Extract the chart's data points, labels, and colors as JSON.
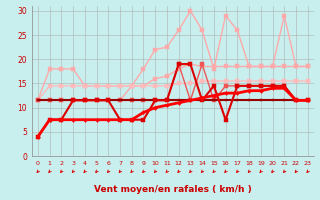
{
  "title": "",
  "xlabel": "Vent moyen/en rafales ( km/h )",
  "background_color": "#c8eeee",
  "grid_color": "#b0b0b0",
  "x_range": [
    -0.5,
    23.5
  ],
  "y_range": [
    0,
    31
  ],
  "yticks": [
    0,
    5,
    10,
    15,
    20,
    25,
    30
  ],
  "xticks": [
    0,
    1,
    2,
    3,
    4,
    5,
    6,
    7,
    8,
    9,
    10,
    11,
    12,
    13,
    14,
    15,
    16,
    17,
    18,
    19,
    20,
    21,
    22,
    23
  ],
  "series": [
    {
      "x": [
        0,
        1,
        2,
        3,
        4,
        5,
        6,
        7,
        8,
        9,
        10,
        11,
        12,
        13,
        14,
        15,
        16,
        17,
        18,
        19,
        20,
        21,
        22,
        23
      ],
      "y": [
        11.5,
        11.5,
        11.5,
        11.5,
        11.5,
        11.5,
        11.5,
        11.5,
        14.5,
        18.0,
        22.0,
        22.5,
        26.0,
        30.0,
        26.0,
        18.0,
        29.0,
        26.0,
        18.5,
        18.5,
        18.5,
        29.0,
        18.5,
        18.5
      ],
      "color": "#ffaaaa",
      "lw": 1.0,
      "marker": "s",
      "ms": 2.5
    },
    {
      "x": [
        0,
        1,
        2,
        3,
        4,
        5,
        6,
        7,
        8,
        9,
        10,
        11,
        12,
        13,
        14,
        15,
        16,
        17,
        18,
        19,
        20,
        21,
        22,
        23
      ],
      "y": [
        11.5,
        18.0,
        18.0,
        18.0,
        14.5,
        14.5,
        14.5,
        14.5,
        14.5,
        14.5,
        16.0,
        16.5,
        18.0,
        19.0,
        18.5,
        18.5,
        18.5,
        18.5,
        18.5,
        18.5,
        18.5,
        18.5,
        18.5,
        18.5
      ],
      "color": "#ffaaaa",
      "lw": 1.0,
      "marker": "s",
      "ms": 2.5
    },
    {
      "x": [
        0,
        1,
        2,
        3,
        4,
        5,
        6,
        7,
        8,
        9,
        10,
        11,
        12,
        13,
        14,
        15,
        16,
        17,
        18,
        19,
        20,
        21,
        22,
        23
      ],
      "y": [
        11.5,
        14.5,
        14.5,
        14.5,
        14.5,
        14.5,
        14.5,
        14.5,
        14.5,
        14.5,
        14.5,
        14.5,
        15.0,
        15.0,
        15.5,
        15.5,
        15.5,
        15.5,
        15.5,
        15.5,
        15.5,
        15.5,
        15.5,
        15.5
      ],
      "color": "#ffbbbb",
      "lw": 1.0,
      "marker": "s",
      "ms": 2.5
    },
    {
      "x": [
        0,
        1,
        2,
        3,
        4,
        5,
        6,
        7,
        8,
        9,
        10,
        11,
        12,
        13,
        14,
        15,
        16,
        17,
        18,
        19,
        20,
        21,
        22,
        23
      ],
      "y": [
        11.5,
        11.5,
        11.5,
        11.5,
        11.5,
        11.5,
        11.5,
        11.5,
        11.5,
        11.5,
        11.5,
        11.5,
        19.0,
        11.5,
        19.0,
        11.5,
        14.5,
        14.5,
        14.5,
        14.5,
        14.5,
        14.5,
        11.5,
        11.5
      ],
      "color": "#ee5555",
      "lw": 1.0,
      "marker": "s",
      "ms": 2.5
    },
    {
      "x": [
        0,
        1,
        2,
        3,
        4,
        5,
        6,
        7,
        8,
        9,
        10,
        11,
        12,
        13,
        14,
        15,
        16,
        17,
        18,
        19,
        20,
        21,
        22,
        23
      ],
      "y": [
        11.5,
        11.5,
        11.5,
        11.5,
        11.5,
        11.5,
        11.5,
        11.5,
        11.5,
        11.5,
        11.5,
        11.5,
        11.5,
        11.5,
        11.5,
        11.5,
        11.5,
        11.5,
        11.5,
        11.5,
        11.5,
        11.5,
        11.5,
        11.5
      ],
      "color": "#990000",
      "lw": 1.5,
      "marker": "s",
      "ms": 2.0
    },
    {
      "x": [
        0,
        1,
        2,
        3,
        4,
        5,
        6,
        7,
        8,
        9,
        10,
        11,
        12,
        13,
        14,
        15,
        16,
        17,
        18,
        19,
        20,
        21,
        22,
        23
      ],
      "y": [
        4.0,
        7.5,
        7.5,
        11.5,
        11.5,
        11.5,
        11.5,
        7.5,
        7.5,
        7.5,
        11.5,
        11.5,
        19.0,
        19.0,
        11.5,
        14.5,
        7.5,
        14.5,
        14.5,
        14.5,
        14.5,
        14.5,
        11.5,
        11.5
      ],
      "color": "#dd0000",
      "lw": 1.5,
      "marker": "s",
      "ms": 2.5
    },
    {
      "x": [
        0,
        1,
        2,
        3,
        4,
        5,
        6,
        7,
        8,
        9,
        10,
        11,
        12,
        13,
        14,
        15,
        16,
        17,
        18,
        19,
        20,
        21,
        22,
        23
      ],
      "y": [
        4.0,
        7.5,
        7.5,
        7.5,
        7.5,
        7.5,
        7.5,
        7.5,
        7.5,
        9.0,
        10.0,
        10.5,
        11.0,
        11.5,
        12.0,
        12.5,
        13.0,
        13.0,
        13.5,
        13.5,
        14.0,
        14.0,
        11.5,
        11.5
      ],
      "color": "#ff0000",
      "lw": 2.0,
      "marker": "D",
      "ms": 2.0
    }
  ],
  "arrow_color": "#dd0000",
  "tick_color": "#cc0000",
  "xlabel_color": "#cc0000",
  "xlabel_fontsize": 6.5,
  "tick_fontsize": 5.5
}
